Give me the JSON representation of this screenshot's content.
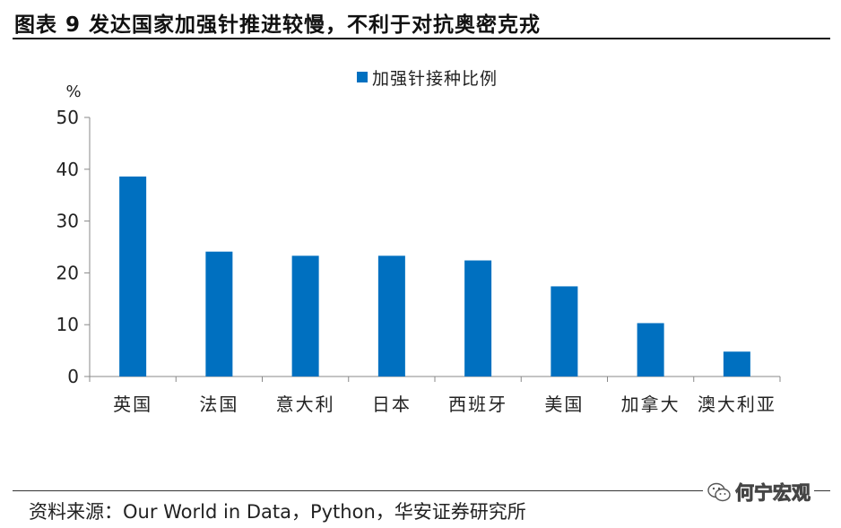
{
  "figure": {
    "title": "图表 9 发达国家加强针推进较慢，不利于对抗奥密克戎",
    "source": "资料来源：Our World in Data，Python，华安证券研究所",
    "watermark": "何宁宏观",
    "watermark_icon": "wechat-icon"
  },
  "chart_data": {
    "type": "bar",
    "title": "",
    "ylabel": "%",
    "xlabel": "",
    "categories": [
      "英国",
      "法国",
      "意大利",
      "日本",
      "西班牙",
      "美国",
      "加拿大",
      "澳大利亚"
    ],
    "series": [
      {
        "name": "加强针接种比例",
        "values": [
          38.6,
          24.1,
          23.3,
          23.3,
          22.4,
          17.4,
          10.3,
          4.8
        ],
        "color": "#0070C0"
      }
    ],
    "ylim": [
      0,
      50
    ],
    "yticks": [
      0,
      10,
      20,
      30,
      40,
      50
    ],
    "grid": false,
    "legend_position": "top"
  }
}
